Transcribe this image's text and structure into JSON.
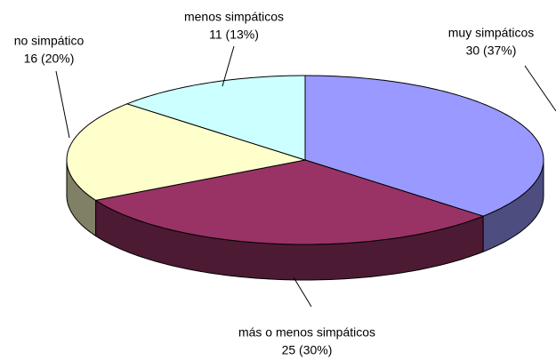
{
  "chart_data": {
    "type": "pie",
    "categories": [
      "muy simpáticos",
      "más o menos simpáticos",
      "no simpático",
      "menos simpáticos"
    ],
    "values": [
      30,
      25,
      16,
      11
    ],
    "value_labels": [
      "30 (37%)",
      "25 (30%)",
      "16 (20%)",
      "11 (13%)"
    ],
    "colors": [
      "#9999ff",
      "#993366",
      "#ffffcc",
      "#ccffff"
    ]
  }
}
